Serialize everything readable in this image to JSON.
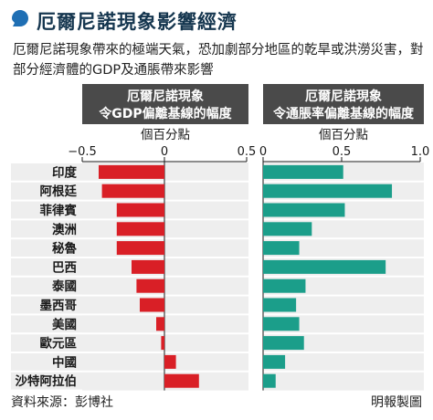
{
  "title": "厄爾尼諾現象影響經濟",
  "subtitle": "厄爾尼諾現象帶來的極端天氣，恐加劇部分地區的乾旱或洪澇災害，對部分經濟體的GDP及通脹帶來影響",
  "footer": {
    "source": "資料來源：彭博社",
    "credit": "明報製圖"
  },
  "colors": {
    "title": "#15364f",
    "header": "#4a4a4a",
    "panel_bg": "#eeeeee",
    "gdp_bar": "#d91f26",
    "cpi_bar": "#1b9e8a",
    "title_dot": "#1f6fb4"
  },
  "chart_data": [
    {
      "type": "bar",
      "orientation": "horizontal",
      "header": [
        "厄爾尼諾現象",
        "令GDP偏離基線的幅度"
      ],
      "unit": "個百分點",
      "xlim": [
        -0.5,
        0.5
      ],
      "tick_labels": [
        "−0.5",
        "0",
        "0.5"
      ],
      "ticks": [
        -0.5,
        0,
        0.5
      ],
      "categories": [
        "印度",
        "阿根廷",
        "菲律賓",
        "澳洲",
        "秘魯",
        "巴西",
        "泰國",
        "墨西哥",
        "美國",
        "歐元區",
        "中國",
        "沙特阿拉伯"
      ],
      "values": [
        -0.4,
        -0.38,
        -0.29,
        -0.29,
        -0.29,
        -0.2,
        -0.17,
        -0.15,
        -0.05,
        -0.02,
        0.07,
        0.21
      ]
    },
    {
      "type": "bar",
      "orientation": "horizontal",
      "header": [
        "厄爾尼諾現象",
        "令通脹率偏離基線的幅度"
      ],
      "unit": "個百分點",
      "xlim": [
        0,
        1.0
      ],
      "tick_labels": [
        "0",
        "0.5",
        "1.0"
      ],
      "ticks": [
        0,
        0.5,
        1.0
      ],
      "categories": [
        "印度",
        "阿根廷",
        "菲律賓",
        "澳洲",
        "秘魯",
        "巴西",
        "泰國",
        "墨西哥",
        "美國",
        "歐元區",
        "中國",
        "沙特阿拉伯"
      ],
      "values": [
        0.51,
        0.82,
        0.52,
        0.31,
        0.23,
        0.78,
        0.27,
        0.21,
        0.23,
        0.26,
        0.14,
        0.08
      ]
    }
  ]
}
